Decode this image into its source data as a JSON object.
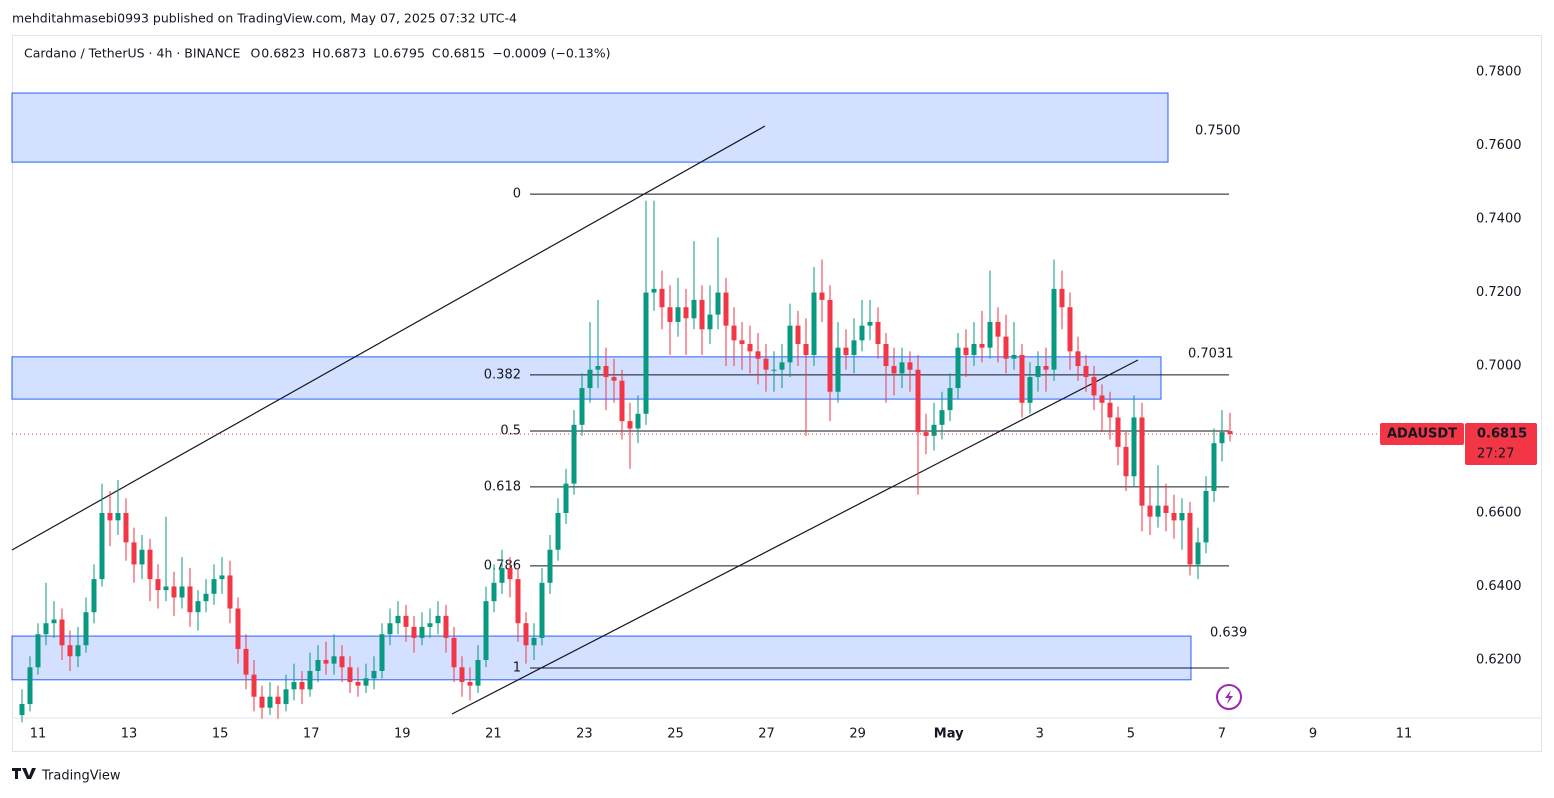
{
  "header": {
    "publisher": "mehditahmasebi0993 published on TradingView.com, May 07, 2025 07:32 UTC-4",
    "footer": "TradingView"
  },
  "chart_data": {
    "type": "candlestick",
    "symbol": "Cardano / TetherUS · 4h · BINANCE",
    "ohlc": [
      {
        "label": "O",
        "value": 0.6823
      },
      {
        "label": "H",
        "value": 0.6873
      },
      {
        "label": "L",
        "value": 0.6795
      },
      {
        "label": "C",
        "value": 0.6815
      }
    ],
    "change": "−0.0009 (−0.13%)",
    "ticker": "ADAUSDT",
    "last": 0.6815,
    "countdown": "27:27",
    "up_color": "#089981",
    "down_color": "#f23645",
    "ylim": [
      0.6042,
      0.7901
    ],
    "yticks": [
      {
        "value": 0.62,
        "label": "0.6200"
      },
      {
        "value": 0.64,
        "label": "0.6400"
      },
      {
        "value": 0.66,
        "label": "0.6600"
      },
      {
        "value": 0.68,
        "label": "0.6800"
      },
      {
        "value": 0.7,
        "label": "0.7000"
      },
      {
        "value": 0.72,
        "label": "0.7200"
      },
      {
        "value": 0.74,
        "label": "0.7400"
      },
      {
        "value": 0.76,
        "label": "0.7600"
      },
      {
        "value": 0.78,
        "label": "0.7800"
      }
    ],
    "xticks": [
      "11",
      "13",
      "15",
      "17",
      "19",
      "21",
      "23",
      "25",
      "27",
      "29",
      "May",
      "3",
      "5",
      "7",
      "9",
      "11"
    ],
    "zones": [
      {
        "label": "0.7500",
        "top": 0.7743,
        "bottom": 0.7555
      },
      {
        "label": "0.7031",
        "top": 0.7025,
        "bottom": 0.691
      },
      {
        "label": "0.639",
        "top": 0.6265,
        "bottom": 0.6146
      }
    ],
    "fib": [
      {
        "ratio": 0,
        "price": 0.7468
      },
      {
        "ratio": 0.382,
        "price": 0.6976
      },
      {
        "ratio": 0.5,
        "price": 0.6823
      },
      {
        "ratio": 0.618,
        "price": 0.6671
      },
      {
        "ratio": 0.786,
        "price": 0.6456
      },
      {
        "ratio": 1,
        "price": 0.6178
      }
    ],
    "candles": [
      [
        0.605,
        0.612,
        0.603,
        0.608
      ],
      [
        0.608,
        0.621,
        0.606,
        0.618
      ],
      [
        0.618,
        0.63,
        0.616,
        0.627
      ],
      [
        0.627,
        0.641,
        0.624,
        0.63
      ],
      [
        0.63,
        0.636,
        0.626,
        0.631
      ],
      [
        0.631,
        0.634,
        0.62,
        0.624
      ],
      [
        0.624,
        0.628,
        0.617,
        0.621
      ],
      [
        0.621,
        0.629,
        0.618,
        0.624
      ],
      [
        0.624,
        0.637,
        0.622,
        0.633
      ],
      [
        0.633,
        0.646,
        0.63,
        0.642
      ],
      [
        0.642,
        0.668,
        0.64,
        0.66
      ],
      [
        0.66,
        0.666,
        0.651,
        0.658
      ],
      [
        0.658,
        0.669,
        0.654,
        0.66
      ],
      [
        0.66,
        0.664,
        0.647,
        0.652
      ],
      [
        0.652,
        0.656,
        0.641,
        0.646
      ],
      [
        0.646,
        0.654,
        0.642,
        0.65
      ],
      [
        0.65,
        0.653,
        0.636,
        0.642
      ],
      [
        0.642,
        0.646,
        0.634,
        0.639
      ],
      [
        0.639,
        0.659,
        0.636,
        0.64
      ],
      [
        0.64,
        0.644,
        0.632,
        0.637
      ],
      [
        0.637,
        0.648,
        0.634,
        0.64
      ],
      [
        0.64,
        0.645,
        0.629,
        0.633
      ],
      [
        0.633,
        0.639,
        0.628,
        0.636
      ],
      [
        0.636,
        0.642,
        0.633,
        0.638
      ],
      [
        0.638,
        0.646,
        0.635,
        0.642
      ],
      [
        0.642,
        0.648,
        0.638,
        0.643
      ],
      [
        0.643,
        0.647,
        0.63,
        0.634
      ],
      [
        0.634,
        0.637,
        0.619,
        0.623
      ],
      [
        0.623,
        0.627,
        0.612,
        0.616
      ],
      [
        0.616,
        0.62,
        0.606,
        0.61
      ],
      [
        0.61,
        0.613,
        0.604,
        0.607
      ],
      [
        0.607,
        0.614,
        0.605,
        0.61
      ],
      [
        0.61,
        0.613,
        0.604,
        0.608
      ],
      [
        0.608,
        0.616,
        0.606,
        0.612
      ],
      [
        0.612,
        0.619,
        0.609,
        0.614
      ],
      [
        0.614,
        0.617,
        0.608,
        0.612
      ],
      [
        0.612,
        0.622,
        0.61,
        0.617
      ],
      [
        0.617,
        0.624,
        0.614,
        0.62
      ],
      [
        0.62,
        0.625,
        0.616,
        0.619
      ],
      [
        0.619,
        0.627,
        0.616,
        0.621
      ],
      [
        0.621,
        0.624,
        0.614,
        0.618
      ],
      [
        0.618,
        0.621,
        0.611,
        0.614
      ],
      [
        0.614,
        0.618,
        0.61,
        0.613
      ],
      [
        0.613,
        0.619,
        0.611,
        0.615
      ],
      [
        0.615,
        0.621,
        0.612,
        0.617
      ],
      [
        0.617,
        0.63,
        0.615,
        0.627
      ],
      [
        0.627,
        0.634,
        0.624,
        0.63
      ],
      [
        0.63,
        0.636,
        0.627,
        0.632
      ],
      [
        0.632,
        0.635,
        0.625,
        0.629
      ],
      [
        0.629,
        0.632,
        0.622,
        0.626
      ],
      [
        0.626,
        0.633,
        0.624,
        0.629
      ],
      [
        0.629,
        0.634,
        0.626,
        0.63
      ],
      [
        0.63,
        0.636,
        0.627,
        0.632
      ],
      [
        0.632,
        0.635,
        0.622,
        0.626
      ],
      [
        0.626,
        0.629,
        0.614,
        0.618
      ],
      [
        0.618,
        0.621,
        0.61,
        0.614
      ],
      [
        0.614,
        0.618,
        0.609,
        0.613
      ],
      [
        0.613,
        0.624,
        0.611,
        0.62
      ],
      [
        0.62,
        0.64,
        0.618,
        0.636
      ],
      [
        0.636,
        0.646,
        0.633,
        0.641
      ],
      [
        0.641,
        0.65,
        0.638,
        0.645
      ],
      [
        0.645,
        0.648,
        0.637,
        0.642
      ],
      [
        0.642,
        0.645,
        0.625,
        0.63
      ],
      [
        0.63,
        0.633,
        0.619,
        0.624
      ],
      [
        0.624,
        0.63,
        0.62,
        0.626
      ],
      [
        0.626,
        0.645,
        0.624,
        0.641
      ],
      [
        0.641,
        0.654,
        0.638,
        0.65
      ],
      [
        0.65,
        0.664,
        0.647,
        0.66
      ],
      [
        0.66,
        0.672,
        0.657,
        0.668
      ],
      [
        0.668,
        0.688,
        0.665,
        0.684
      ],
      [
        0.684,
        0.698,
        0.681,
        0.694
      ],
      [
        0.694,
        0.712,
        0.69,
        0.699
      ],
      [
        0.699,
        0.718,
        0.694,
        0.7
      ],
      [
        0.7,
        0.705,
        0.688,
        0.697
      ],
      [
        0.697,
        0.702,
        0.69,
        0.696
      ],
      [
        0.696,
        0.699,
        0.68,
        0.685
      ],
      [
        0.685,
        0.69,
        0.672,
        0.683
      ],
      [
        0.683,
        0.692,
        0.679,
        0.687
      ],
      [
        0.687,
        0.745,
        0.684,
        0.72
      ],
      [
        0.72,
        0.745,
        0.715,
        0.721
      ],
      [
        0.721,
        0.726,
        0.71,
        0.716
      ],
      [
        0.716,
        0.722,
        0.703,
        0.712
      ],
      [
        0.712,
        0.724,
        0.708,
        0.716
      ],
      [
        0.716,
        0.721,
        0.703,
        0.713
      ],
      [
        0.713,
        0.734,
        0.71,
        0.718
      ],
      [
        0.718,
        0.722,
        0.703,
        0.71
      ],
      [
        0.71,
        0.722,
        0.706,
        0.714
      ],
      [
        0.714,
        0.735,
        0.71,
        0.72
      ],
      [
        0.72,
        0.724,
        0.7,
        0.711
      ],
      [
        0.711,
        0.716,
        0.7,
        0.707
      ],
      [
        0.707,
        0.712,
        0.699,
        0.706
      ],
      [
        0.706,
        0.711,
        0.698,
        0.704
      ],
      [
        0.704,
        0.709,
        0.695,
        0.702
      ],
      [
        0.702,
        0.706,
        0.693,
        0.699
      ],
      [
        0.699,
        0.704,
        0.693,
        0.699
      ],
      [
        0.699,
        0.706,
        0.694,
        0.701
      ],
      [
        0.701,
        0.717,
        0.697,
        0.711
      ],
      [
        0.711,
        0.715,
        0.7,
        0.706
      ],
      [
        0.706,
        0.713,
        0.681,
        0.703
      ],
      [
        0.703,
        0.727,
        0.7,
        0.72
      ],
      [
        0.72,
        0.729,
        0.712,
        0.718
      ],
      [
        0.718,
        0.722,
        0.685,
        0.693
      ],
      [
        0.693,
        0.712,
        0.69,
        0.705
      ],
      [
        0.705,
        0.71,
        0.699,
        0.703
      ],
      [
        0.703,
        0.713,
        0.698,
        0.707
      ],
      [
        0.707,
        0.718,
        0.704,
        0.711
      ],
      [
        0.711,
        0.718,
        0.707,
        0.712
      ],
      [
        0.712,
        0.716,
        0.702,
        0.706
      ],
      [
        0.706,
        0.709,
        0.69,
        0.7
      ],
      [
        0.7,
        0.705,
        0.692,
        0.698
      ],
      [
        0.698,
        0.705,
        0.694,
        0.701
      ],
      [
        0.701,
        0.704,
        0.693,
        0.699
      ],
      [
        0.699,
        0.703,
        0.665,
        0.682
      ],
      [
        0.682,
        0.687,
        0.676,
        0.681
      ],
      [
        0.681,
        0.69,
        0.677,
        0.684
      ],
      [
        0.684,
        0.693,
        0.68,
        0.688
      ],
      [
        0.688,
        0.698,
        0.685,
        0.694
      ],
      [
        0.694,
        0.709,
        0.691,
        0.705
      ],
      [
        0.705,
        0.71,
        0.697,
        0.703
      ],
      [
        0.703,
        0.712,
        0.7,
        0.706
      ],
      [
        0.706,
        0.715,
        0.701,
        0.705
      ],
      [
        0.705,
        0.726,
        0.702,
        0.712
      ],
      [
        0.712,
        0.716,
        0.701,
        0.708
      ],
      [
        0.708,
        0.714,
        0.698,
        0.702
      ],
      [
        0.702,
        0.712,
        0.699,
        0.703
      ],
      [
        0.703,
        0.706,
        0.686,
        0.69
      ],
      [
        0.69,
        0.701,
        0.687,
        0.697
      ],
      [
        0.697,
        0.704,
        0.693,
        0.7
      ],
      [
        0.7,
        0.705,
        0.693,
        0.699
      ],
      [
        0.699,
        0.729,
        0.696,
        0.721
      ],
      [
        0.721,
        0.726,
        0.71,
        0.716
      ],
      [
        0.716,
        0.72,
        0.699,
        0.704
      ],
      [
        0.704,
        0.708,
        0.696,
        0.7
      ],
      [
        0.7,
        0.703,
        0.693,
        0.697
      ],
      [
        0.697,
        0.7,
        0.688,
        0.692
      ],
      [
        0.692,
        0.695,
        0.682,
        0.69
      ],
      [
        0.69,
        0.693,
        0.68,
        0.686
      ],
      [
        0.686,
        0.689,
        0.673,
        0.678
      ],
      [
        0.678,
        0.682,
        0.666,
        0.67
      ],
      [
        0.67,
        0.692,
        0.667,
        0.686
      ],
      [
        0.686,
        0.69,
        0.655,
        0.662
      ],
      [
        0.662,
        0.667,
        0.654,
        0.659
      ],
      [
        0.659,
        0.673,
        0.656,
        0.662
      ],
      [
        0.662,
        0.668,
        0.655,
        0.66
      ],
      [
        0.66,
        0.665,
        0.653,
        0.658
      ],
      [
        0.658,
        0.664,
        0.65,
        0.66
      ],
      [
        0.66,
        0.663,
        0.643,
        0.646
      ],
      [
        0.646,
        0.656,
        0.642,
        0.652
      ],
      [
        0.652,
        0.67,
        0.649,
        0.666
      ],
      [
        0.666,
        0.683,
        0.663,
        0.679
      ],
      [
        0.679,
        0.688,
        0.674,
        0.682
      ],
      [
        0.6823,
        0.6873,
        0.6795,
        0.6815
      ]
    ]
  }
}
